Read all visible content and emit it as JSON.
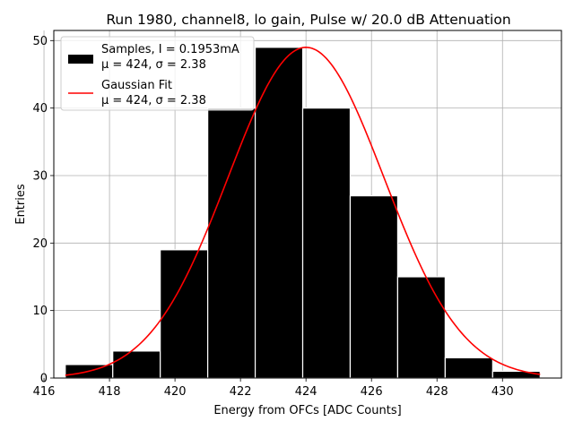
{
  "chart_data": {
    "type": "bar",
    "title": "Run 1980, channel8, lo gain, Pulse w/ 20.0 dB Attenuation",
    "xlabel": "Energy from OFCs [ADC Counts]",
    "ylabel": "Entries",
    "xlim": [
      416.3,
      431.8
    ],
    "ylim": [
      0,
      51.5
    ],
    "grid": true,
    "x_ticks": [
      416,
      418,
      420,
      422,
      424,
      426,
      428,
      430
    ],
    "y_ticks": [
      0,
      10,
      20,
      30,
      40,
      50
    ],
    "histogram": {
      "name": "Samples, I = 0.1953mA",
      "bin_edges": [
        416.65,
        418.1,
        419.55,
        421.0,
        422.45,
        423.9,
        425.35,
        426.8,
        428.25,
        429.7,
        431.15
      ],
      "counts": [
        2,
        4,
        19,
        40,
        49,
        40,
        27,
        15,
        3,
        1
      ],
      "color": "#000000"
    },
    "fit": {
      "name": "Gaussian Fit",
      "mu": 424.0,
      "sigma": 2.38,
      "amplitude": 49.0,
      "x_range": [
        416.65,
        431.15
      ],
      "color": "#ff0000"
    },
    "legend": {
      "position": "top-left",
      "entries": [
        {
          "label_line1": "Samples, I = 0.1953mA",
          "label_line2": "μ = 424, σ = 2.38",
          "style": "patch"
        },
        {
          "label_line1": "Gaussian Fit",
          "label_line2": "μ = 424, σ = 2.38",
          "style": "line"
        }
      ]
    }
  }
}
